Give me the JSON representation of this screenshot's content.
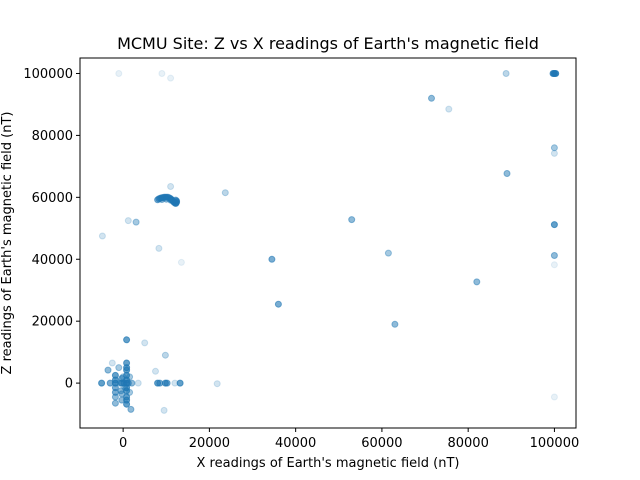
{
  "chart_data": {
    "type": "scatter",
    "title": "MCMU Site: Z vs X readings of Earth's magnetic field",
    "xlabel": "X readings of Earth's magnetic field (nT)",
    "ylabel": "Z readings of Earth's magnetic field (nT)",
    "xlim": [
      -10000,
      105000
    ],
    "ylim": [
      -14500,
      105000
    ],
    "xticks": [
      0,
      20000,
      40000,
      60000,
      80000,
      100000
    ],
    "yticks": [
      0,
      20000,
      40000,
      60000,
      80000,
      100000
    ],
    "grid": false,
    "marker_color": "#1f77b4",
    "points": [
      [
        -5000,
        0,
        0.7
      ],
      [
        -4800,
        47500,
        0.2
      ],
      [
        -3500,
        4200,
        0.5
      ],
      [
        -3000,
        0,
        0.6
      ],
      [
        -2500,
        6500,
        0.2
      ],
      [
        -1800,
        2500,
        0.7
      ],
      [
        -1800,
        1000,
        0.7
      ],
      [
        -1800,
        0,
        0.8
      ],
      [
        -1800,
        -1500,
        0.6
      ],
      [
        -1800,
        -3000,
        0.6
      ],
      [
        -1800,
        -4500,
        0.5
      ],
      [
        -1800,
        -6500,
        0.5
      ],
      [
        -1000,
        100000,
        0.1
      ],
      [
        -1000,
        5000,
        0.4
      ],
      [
        -500,
        -2500,
        0.5
      ],
      [
        -300,
        1500,
        0.6
      ],
      [
        -300,
        0,
        0.7
      ],
      [
        -300,
        -3500,
        0.5
      ],
      [
        -300,
        -5500,
        0.5
      ],
      [
        -600,
        0,
        0.5
      ],
      [
        0,
        2000,
        0.4
      ],
      [
        200,
        0,
        0.6
      ],
      [
        400,
        -1500,
        0.4
      ],
      [
        800,
        14000,
        0.7
      ],
      [
        800,
        6500,
        0.7
      ],
      [
        800,
        5000,
        0.7
      ],
      [
        800,
        4200,
        0.7
      ],
      [
        800,
        2500,
        0.7
      ],
      [
        800,
        1000,
        0.7
      ],
      [
        800,
        0,
        0.8
      ],
      [
        800,
        -1500,
        0.7
      ],
      [
        800,
        -2500,
        0.7
      ],
      [
        800,
        -4500,
        0.7
      ],
      [
        800,
        -5500,
        0.7
      ],
      [
        800,
        -6800,
        0.7
      ],
      [
        1200,
        0,
        0.6
      ],
      [
        1200,
        52500,
        0.2
      ],
      [
        1500,
        2000,
        0.4
      ],
      [
        1500,
        -3000,
        0.4
      ],
      [
        1800,
        -8500,
        0.5
      ],
      [
        2000,
        0,
        0.5
      ],
      [
        3000,
        52000,
        0.4
      ],
      [
        3500,
        0,
        0.2
      ],
      [
        5000,
        13000,
        0.2
      ],
      [
        7500,
        3800,
        0.2
      ],
      [
        8000,
        0,
        0.7
      ],
      [
        8300,
        43500,
        0.2
      ],
      [
        8500,
        0,
        0.6
      ],
      [
        9000,
        100000,
        0.1
      ],
      [
        9500,
        -8800,
        0.2
      ],
      [
        9800,
        9000,
        0.3
      ],
      [
        9800,
        0,
        0.7
      ],
      [
        10200,
        0,
        0.6
      ],
      [
        11000,
        63500,
        0.2
      ],
      [
        11000,
        98500,
        0.1
      ],
      [
        12000,
        0,
        0.2
      ],
      [
        13200,
        0,
        0.7
      ],
      [
        13500,
        39000,
        0.1
      ],
      [
        8000,
        59200,
        0.6
      ],
      [
        8300,
        59500,
        0.6
      ],
      [
        8600,
        59700,
        0.6
      ],
      [
        8900,
        59800,
        0.6
      ],
      [
        9200,
        59900,
        0.6
      ],
      [
        9500,
        60000,
        0.6
      ],
      [
        9800,
        60000,
        0.6
      ],
      [
        10100,
        60000,
        0.6
      ],
      [
        10400,
        60000,
        0.6
      ],
      [
        10700,
        59800,
        0.6
      ],
      [
        11000,
        59600,
        0.6
      ],
      [
        11200,
        59300,
        0.6
      ],
      [
        11400,
        59000,
        0.6
      ],
      [
        11600,
        58700,
        0.6
      ],
      [
        11800,
        58400,
        0.6
      ],
      [
        12000,
        58200,
        0.6
      ],
      [
        12200,
        58000,
        0.6
      ],
      [
        12300,
        58200,
        0.6
      ],
      [
        12400,
        58500,
        0.6
      ],
      [
        12400,
        58800,
        0.6
      ],
      [
        12200,
        59100,
        0.6
      ],
      [
        9000,
        59300,
        0.5
      ],
      [
        10000,
        59400,
        0.5
      ],
      [
        11000,
        59100,
        0.5
      ],
      [
        21800,
        -200,
        0.2
      ],
      [
        23700,
        61500,
        0.3
      ],
      [
        34500,
        40000,
        0.6
      ],
      [
        36000,
        25500,
        0.6
      ],
      [
        53000,
        52800,
        0.5
      ],
      [
        61500,
        42000,
        0.4
      ],
      [
        63000,
        19000,
        0.5
      ],
      [
        71500,
        92000,
        0.5
      ],
      [
        75500,
        88500,
        0.2
      ],
      [
        82000,
        32700,
        0.5
      ],
      [
        88800,
        100000,
        0.3
      ],
      [
        89000,
        67700,
        0.5
      ],
      [
        100000,
        100000,
        0.9
      ],
      [
        99700,
        100000,
        0.8
      ],
      [
        100300,
        100000,
        0.8
      ],
      [
        100000,
        76000,
        0.4
      ],
      [
        100000,
        74200,
        0.2
      ],
      [
        100000,
        51200,
        0.7
      ],
      [
        100000,
        41200,
        0.5
      ],
      [
        100000,
        38200,
        0.1
      ],
      [
        100000,
        -4500,
        0.1
      ]
    ]
  }
}
